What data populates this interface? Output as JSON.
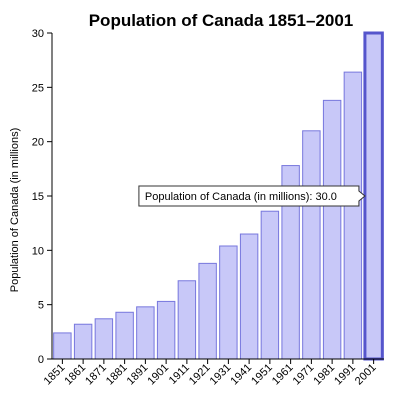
{
  "chart_data": {
    "type": "bar",
    "title": "Population of Canada 1851–2001",
    "ylabel": "Population of Canada (in millions)",
    "xlabel": "",
    "categories": [
      "1851",
      "1861",
      "1871",
      "1881",
      "1891",
      "1901",
      "1911",
      "1921",
      "1931",
      "1941",
      "1951",
      "1961",
      "1971",
      "1981",
      "1991",
      "2001"
    ],
    "values": [
      2.4,
      3.2,
      3.7,
      4.3,
      4.8,
      5.3,
      7.2,
      8.8,
      10.4,
      11.5,
      13.6,
      17.8,
      21.0,
      23.8,
      26.4,
      30.0
    ],
    "ylim": [
      0,
      30
    ],
    "yticks": [
      0,
      5,
      10,
      15,
      20,
      25,
      30
    ],
    "grid": false,
    "highlighted_index": 15,
    "bar_fill": "#c8c8f8",
    "bar_stroke": "#7777dd",
    "highlight_stroke": "#5555cc",
    "tooltip": {
      "text": "Population of Canada (in millions): 30.0"
    }
  }
}
